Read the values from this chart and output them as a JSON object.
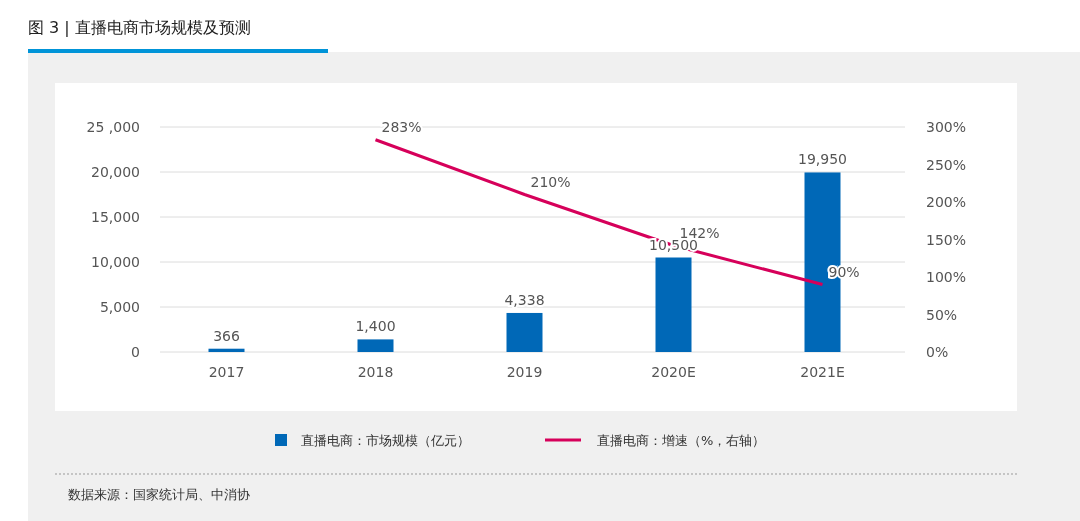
{
  "chart_data": {
    "type": "bar",
    "title": "图 3 | 直播电商市场规模及预测",
    "categories": [
      "2017",
      "2018",
      "2019",
      "2020E",
      "2021E"
    ],
    "series": [
      {
        "name": "直播电商：市场规模（亿元）",
        "color": "#0068b7",
        "values": [
          366,
          1400,
          4338,
          10500,
          19950
        ],
        "value_labels": [
          "366",
          "1,400",
          "4,338",
          "10,500",
          "19,950"
        ]
      },
      {
        "name": "直播电商：增速（%，右轴）",
        "type": "line",
        "axis": "y2",
        "color": "#d6005a",
        "values": [
          null,
          283,
          210,
          142,
          90
        ],
        "value_labels": [
          null,
          "283%",
          "210%",
          "142%",
          "90%"
        ],
        "marker": "none",
        "line_style": "solid"
      }
    ],
    "ylim": [
      0,
      25000
    ],
    "yticks": [
      0,
      {
        "value": 5000,
        "label": "5,000"
      },
      {
        "value": 10000,
        "label": "10,000"
      },
      {
        "value": 15000,
        "label": "15,000"
      },
      {
        "value": 20000,
        "label": "20,000"
      },
      {
        "value": 25000,
        "label": "25 ,000"
      }
    ],
    "y2lim": [
      0,
      300
    ],
    "y2ticks": [
      {
        "value": 0,
        "label": "0%"
      },
      {
        "value": 50,
        "label": "50%"
      },
      {
        "value": 100,
        "label": "100%"
      },
      {
        "value": 150,
        "label": "150%"
      },
      {
        "value": 200,
        "label": "200%"
      },
      {
        "value": 250,
        "label": "250%"
      },
      {
        "value": 300,
        "label": "300%"
      }
    ],
    "grid": "y",
    "legend": "bottom",
    "annotations": [
      "数据来源：国家统计局、中消协"
    ]
  }
}
